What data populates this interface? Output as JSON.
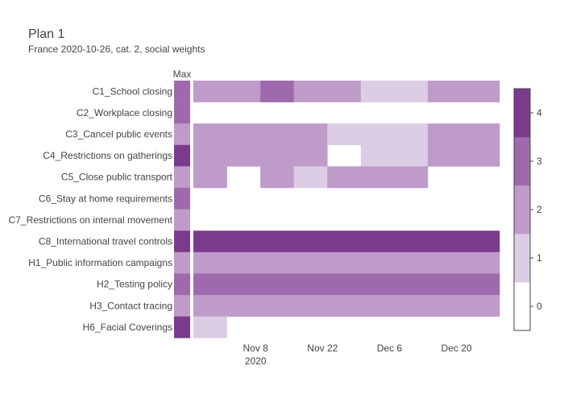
{
  "chart_data": {
    "type": "heatmap",
    "title": "Plan 1",
    "subtitle": "France 2020-10-26, cat. 2, social weights",
    "max_column_label": "Max",
    "rows": [
      "C1_School closing",
      "C2_Workplace closing",
      "C3_Cancel public events",
      "C4_Restrictions on gatherings",
      "C5_Close public transport",
      "C6_Stay at home requirements",
      "C7_Restrictions on internal movement",
      "C8_International travel controls",
      "H1_Public information campaigns",
      "H2_Testing policy",
      "H3_Contact tracing",
      "H6_Facial Coverings"
    ],
    "max_values": [
      3,
      3,
      2,
      4,
      2,
      3,
      2,
      4,
      2,
      3,
      2,
      4
    ],
    "x_tick_labels": [
      "Nov 8",
      "Nov 22",
      "Dec 6",
      "Dec 20"
    ],
    "x_tick_year": "2020",
    "period_start": "2020-10-26",
    "period_end": "2020-12-29",
    "segments": [
      [
        {
          "start": "2020-10-26",
          "end": "2020-11-09",
          "value": 2
        },
        {
          "start": "2020-11-09",
          "end": "2020-11-16",
          "value": 3
        },
        {
          "start": "2020-11-16",
          "end": "2020-11-30",
          "value": 2
        },
        {
          "start": "2020-11-30",
          "end": "2020-12-14",
          "value": 1
        },
        {
          "start": "2020-12-14",
          "end": "2020-12-29",
          "value": 2
        }
      ],
      [],
      [
        {
          "start": "2020-10-26",
          "end": "2020-11-23",
          "value": 2
        },
        {
          "start": "2020-11-23",
          "end": "2020-12-14",
          "value": 1
        },
        {
          "start": "2020-12-14",
          "end": "2020-12-29",
          "value": 2
        }
      ],
      [
        {
          "start": "2020-10-26",
          "end": "2020-11-23",
          "value": 2
        },
        {
          "start": "2020-11-30",
          "end": "2020-12-14",
          "value": 1
        },
        {
          "start": "2020-12-14",
          "end": "2020-12-29",
          "value": 2
        }
      ],
      [
        {
          "start": "2020-10-26",
          "end": "2020-11-02",
          "value": 2
        },
        {
          "start": "2020-11-09",
          "end": "2020-11-16",
          "value": 2
        },
        {
          "start": "2020-11-16",
          "end": "2020-11-23",
          "value": 1
        },
        {
          "start": "2020-11-23",
          "end": "2020-12-14",
          "value": 2
        }
      ],
      [],
      [],
      [
        {
          "start": "2020-10-26",
          "end": "2020-12-29",
          "value": 4
        }
      ],
      [
        {
          "start": "2020-10-26",
          "end": "2020-12-29",
          "value": 2
        }
      ],
      [
        {
          "start": "2020-10-26",
          "end": "2020-12-29",
          "value": 3
        }
      ],
      [
        {
          "start": "2020-10-26",
          "end": "2020-12-29",
          "value": 2
        }
      ],
      [
        {
          "start": "2020-10-26",
          "end": "2020-11-02",
          "value": 1
        }
      ]
    ],
    "colorscale": {
      "0": "#ffffff",
      "1": "#dccce4",
      "2": "#bf9bc9",
      "3": "#9e6aad",
      "4": "#7b3b8d"
    },
    "colorbar_ticks": [
      0,
      1,
      2,
      3,
      4
    ]
  }
}
